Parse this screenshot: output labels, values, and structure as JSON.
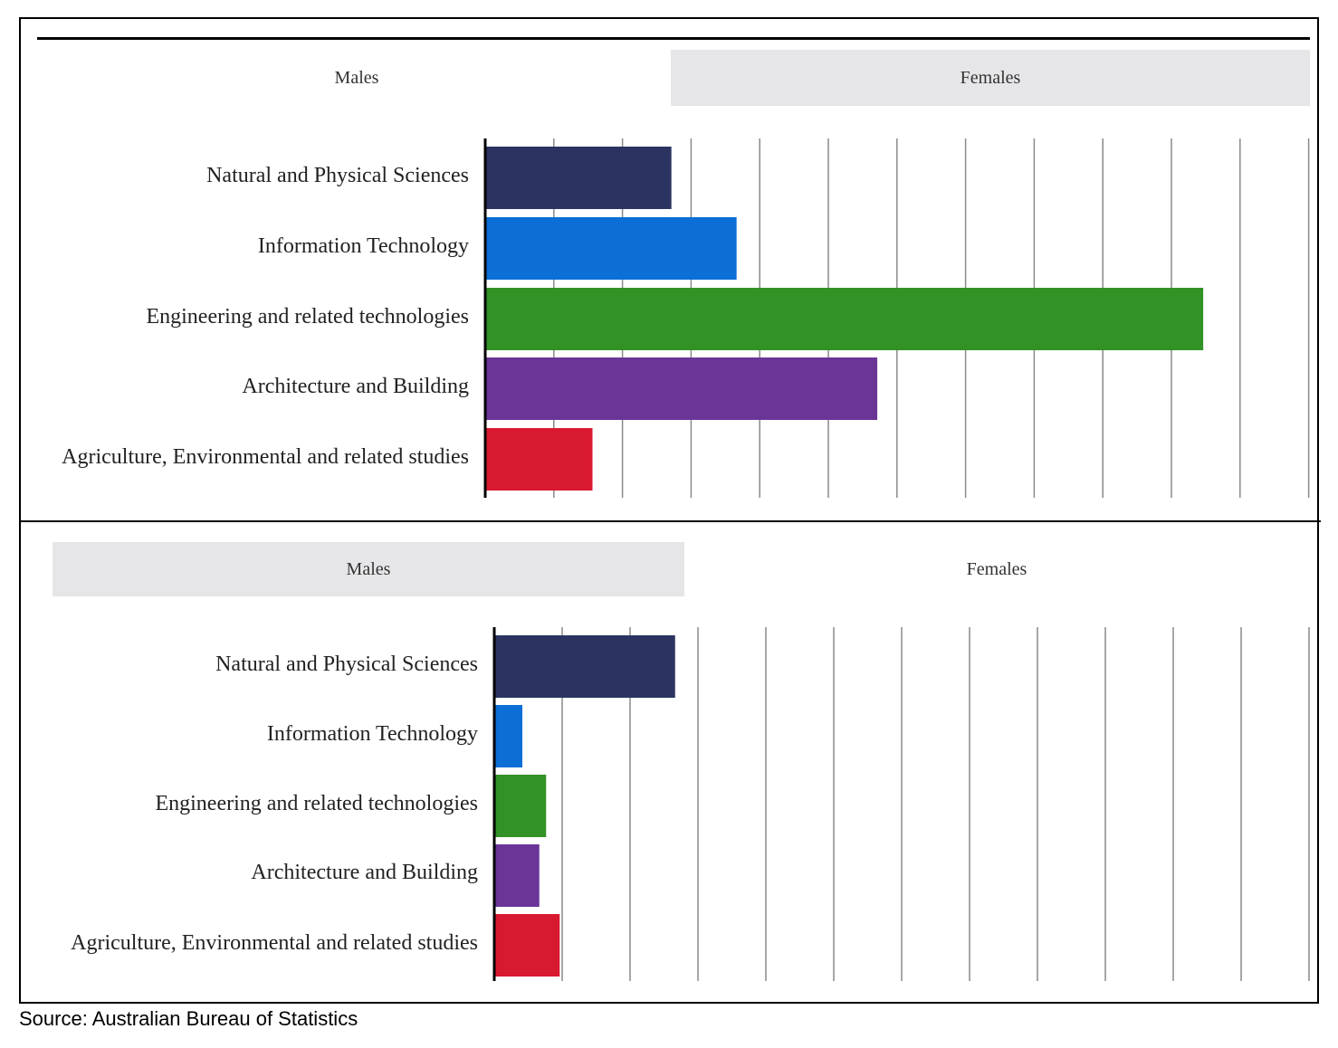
{
  "source_note": "Source: Australian Bureau of Statistics",
  "colors": {
    "series": [
      "#2b3461",
      "#0b6fd6",
      "#329226",
      "#6a3597",
      "#d81a31"
    ],
    "tab_active_bg": "#ffffff",
    "tab_inactive_bg": "#e6e6e8"
  },
  "chart_data": [
    {
      "type": "bar",
      "orientation": "horizontal",
      "tabs": [
        {
          "label": "Males",
          "active": true
        },
        {
          "label": "Females",
          "active": false
        }
      ],
      "categories": [
        "Natural and Physical Sciences",
        "Information Technology",
        "Engineering and related technologies",
        "Architecture and Building",
        "Agriculture, Environmental and related studies"
      ],
      "values": [
        2.7,
        3.65,
        10.45,
        5.7,
        1.55
      ],
      "xlim": [
        0,
        12
      ],
      "grid": true
    },
    {
      "type": "bar",
      "orientation": "horizontal",
      "tabs": [
        {
          "label": "Males",
          "active": false
        },
        {
          "label": "Females",
          "active": true
        }
      ],
      "categories": [
        "Natural and Physical Sciences",
        "Information Technology",
        "Engineering and related technologies",
        "Architecture and Building",
        "Agriculture, Environmental and related studies"
      ],
      "values": [
        2.65,
        0.4,
        0.75,
        0.65,
        0.95
      ],
      "xlim": [
        0,
        12
      ],
      "grid": true
    }
  ]
}
